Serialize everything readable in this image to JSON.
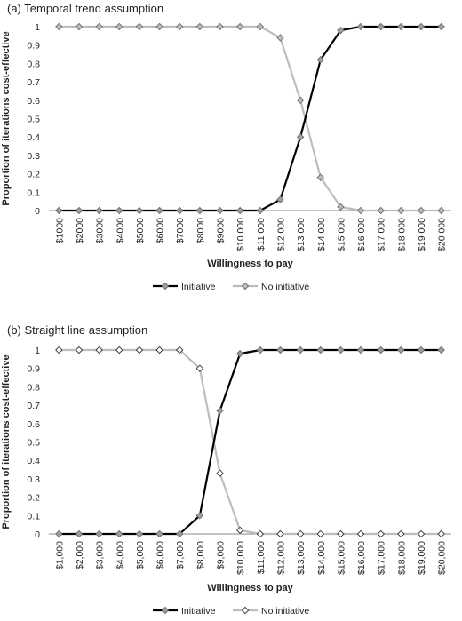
{
  "chart_data": [
    {
      "type": "line",
      "title": "(a)  Temporal trend assumption",
      "xlabel": "Willingness to pay",
      "ylabel": "Proportion of iterations cost-effective",
      "categories": [
        "$1000",
        "$2000",
        "$3000",
        "$4000",
        "$5000",
        "$6000",
        "$7000",
        "$8000",
        "$9000",
        "$10 000",
        "$11 000",
        "$12 000",
        "$13 000",
        "$14 000",
        "$15 000",
        "$16 000",
        "$17 000",
        "$18 000",
        "$19 000",
        "$20 000"
      ],
      "yticks": [
        "0",
        "0.1",
        "0.2",
        "0.3",
        "0.4",
        "0.5",
        "0.6",
        "0.7",
        "0.8",
        "0.9",
        "1"
      ],
      "ylim": [
        0,
        1
      ],
      "grid": false,
      "legend_position": "bottom",
      "series": [
        {
          "name": "Initiative",
          "color": "#000000",
          "marker_fill": "#9e9e9e",
          "values": [
            0,
            0,
            0,
            0,
            0,
            0,
            0,
            0,
            0,
            0,
            0,
            0.06,
            0.4,
            0.82,
            0.98,
            1,
            1,
            1,
            1,
            1
          ]
        },
        {
          "name": "No initiative",
          "color": "#bdbdbd",
          "marker_fill": "#bdbdbd",
          "values": [
            1,
            1,
            1,
            1,
            1,
            1,
            1,
            1,
            1,
            1,
            1,
            0.94,
            0.6,
            0.18,
            0.02,
            0,
            0,
            0,
            0,
            0
          ]
        }
      ]
    },
    {
      "type": "line",
      "title": "(b)  Straight line assumption",
      "xlabel": "Willingness to pay",
      "ylabel": "Proportion of iterations cost-effective",
      "categories": [
        "$1,000",
        "$2,000",
        "$3,000",
        "$4,000",
        "$5,000",
        "$6,000",
        "$7,000",
        "$8,000",
        "$9,000",
        "$10,000",
        "$11,000",
        "$12,000",
        "$13,000",
        "$14,000",
        "$15,000",
        "$16,000",
        "$17,000",
        "$18,000",
        "$19,000",
        "$20,000"
      ],
      "yticks": [
        "0",
        "0.1",
        "0.2",
        "0.3",
        "0.4",
        "0.5",
        "0.6",
        "0.7",
        "0.8",
        "0.9",
        "1"
      ],
      "ylim": [
        0,
        1
      ],
      "grid": false,
      "legend_position": "bottom",
      "series": [
        {
          "name": "Initiative",
          "color": "#000000",
          "marker_fill": "#9e9e9e",
          "values": [
            0,
            0,
            0,
            0,
            0,
            0,
            0,
            0.1,
            0.67,
            0.98,
            1,
            1,
            1,
            1,
            1,
            1,
            1,
            1,
            1,
            1
          ]
        },
        {
          "name": "No initiative",
          "color": "#bdbdbd",
          "marker_fill": "#ffffff",
          "values": [
            1,
            1,
            1,
            1,
            1,
            1,
            1,
            0.9,
            0.33,
            0.02,
            0,
            0,
            0,
            0,
            0,
            0,
            0,
            0,
            0,
            0
          ]
        }
      ]
    }
  ]
}
